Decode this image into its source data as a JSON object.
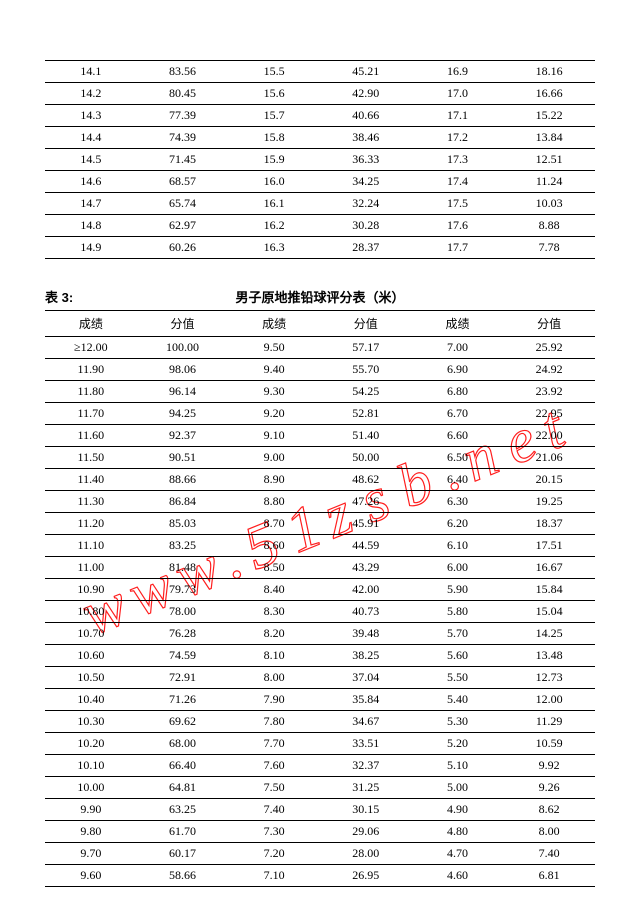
{
  "watermark": {
    "text_w1": "w",
    "text_w2": "w",
    "text_w3": "w",
    "dot1": ".",
    "text_5": "5",
    "text_1": "1",
    "text_z": "z",
    "text_s": "s",
    "text_b": "b",
    "dot2": ".",
    "text_n": "n",
    "text_e": "e",
    "text_t": "t",
    "stroke": "#ff0000",
    "fontsize": 62
  },
  "table1": {
    "rows": [
      [
        "14.1",
        "83.56",
        "15.5",
        "45.21",
        "16.9",
        "18.16"
      ],
      [
        "14.2",
        "80.45",
        "15.6",
        "42.90",
        "17.0",
        "16.66"
      ],
      [
        "14.3",
        "77.39",
        "15.7",
        "40.66",
        "17.1",
        "15.22"
      ],
      [
        "14.4",
        "74.39",
        "15.8",
        "38.46",
        "17.2",
        "13.84"
      ],
      [
        "14.5",
        "71.45",
        "15.9",
        "36.33",
        "17.3",
        "12.51"
      ],
      [
        "14.6",
        "68.57",
        "16.0",
        "34.25",
        "17.4",
        "11.24"
      ],
      [
        "14.7",
        "65.74",
        "16.1",
        "32.24",
        "17.5",
        "10.03"
      ],
      [
        "14.8",
        "62.97",
        "16.2",
        "30.28",
        "17.6",
        "8.88"
      ],
      [
        "14.9",
        "60.26",
        "16.3",
        "28.37",
        "17.7",
        "7.78"
      ]
    ]
  },
  "table2": {
    "caption_label": "表 3:",
    "caption_title": "男子原地推铅球评分表（米）",
    "headers": [
      "成绩",
      "分值",
      "成绩",
      "分值",
      "成绩",
      "分值"
    ],
    "rows": [
      [
        "≥12.00",
        "100.00",
        "9.50",
        "57.17",
        "7.00",
        "25.92"
      ],
      [
        "11.90",
        "98.06",
        "9.40",
        "55.70",
        "6.90",
        "24.92"
      ],
      [
        "11.80",
        "96.14",
        "9.30",
        "54.25",
        "6.80",
        "23.92"
      ],
      [
        "11.70",
        "94.25",
        "9.20",
        "52.81",
        "6.70",
        "22.95"
      ],
      [
        "11.60",
        "92.37",
        "9.10",
        "51.40",
        "6.60",
        "22.00"
      ],
      [
        "11.50",
        "90.51",
        "9.00",
        "50.00",
        "6.50",
        "21.06"
      ],
      [
        "11.40",
        "88.66",
        "8.90",
        "48.62",
        "6.40",
        "20.15"
      ],
      [
        "11.30",
        "86.84",
        "8.80",
        "47.26",
        "6.30",
        "19.25"
      ],
      [
        "11.20",
        "85.03",
        "8.70",
        "45.91",
        "6.20",
        "18.37"
      ],
      [
        "11.10",
        "83.25",
        "8.60",
        "44.59",
        "6.10",
        "17.51"
      ],
      [
        "11.00",
        "81.48",
        "8.50",
        "43.29",
        "6.00",
        "16.67"
      ],
      [
        "10.90",
        "79.73",
        "8.40",
        "42.00",
        "5.90",
        "15.84"
      ],
      [
        "10.80",
        "78.00",
        "8.30",
        "40.73",
        "5.80",
        "15.04"
      ],
      [
        "10.70",
        "76.28",
        "8.20",
        "39.48",
        "5.70",
        "14.25"
      ],
      [
        "10.60",
        "74.59",
        "8.10",
        "38.25",
        "5.60",
        "13.48"
      ],
      [
        "10.50",
        "72.91",
        "8.00",
        "37.04",
        "5.50",
        "12.73"
      ],
      [
        "10.40",
        "71.26",
        "7.90",
        "35.84",
        "5.40",
        "12.00"
      ],
      [
        "10.30",
        "69.62",
        "7.80",
        "34.67",
        "5.30",
        "11.29"
      ],
      [
        "10.20",
        "68.00",
        "7.70",
        "33.51",
        "5.20",
        "10.59"
      ],
      [
        "10.10",
        "66.40",
        "7.60",
        "32.37",
        "5.10",
        "9.92"
      ],
      [
        "10.00",
        "64.81",
        "7.50",
        "31.25",
        "5.00",
        "9.26"
      ],
      [
        "9.90",
        "63.25",
        "7.40",
        "30.15",
        "4.90",
        "8.62"
      ],
      [
        "9.80",
        "61.70",
        "7.30",
        "29.06",
        "4.80",
        "8.00"
      ],
      [
        "9.70",
        "60.17",
        "7.20",
        "28.00",
        "4.70",
        "7.40"
      ],
      [
        "9.60",
        "58.66",
        "7.10",
        "26.95",
        "4.60",
        "6.81"
      ]
    ]
  }
}
